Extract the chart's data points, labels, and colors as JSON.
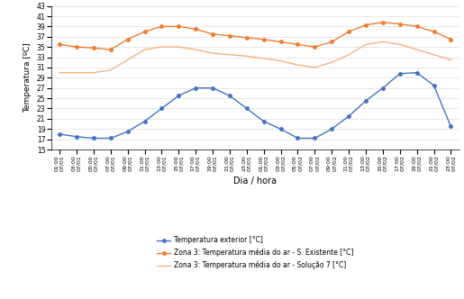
{
  "x_labels_time": [
    "01:00",
    "03:00",
    "05:00",
    "07:00",
    "09:00",
    "11:00",
    "13:00",
    "15:00",
    "17:00",
    "19:00",
    "21:00",
    "23:00",
    "01:00",
    "03:00",
    "05:00",
    "07:00",
    "09:00",
    "11:00",
    "13:00",
    "15:00",
    "17:00",
    "19:00",
    "21:00",
    "23:00"
  ],
  "x_labels_date": [
    "07/01",
    "07/01",
    "07/01",
    "07/01",
    "07/01",
    "07/01",
    "07/01",
    "07/01",
    "07/01",
    "07/01",
    "07/01",
    "07/01",
    "07/02",
    "07/02",
    "07/02",
    "07/02",
    "07/02",
    "07/02",
    "07/02",
    "07/02",
    "07/02",
    "07/02",
    "07/02",
    "07/02"
  ],
  "exterior": [
    18.0,
    17.5,
    17.2,
    17.2,
    18.5,
    20.5,
    23.0,
    25.5,
    27.0,
    27.0,
    25.5,
    23.0,
    20.5,
    19.0,
    17.2,
    17.2,
    19.0,
    21.5,
    24.5,
    27.0,
    29.8,
    30.0,
    27.5,
    19.5
  ],
  "existente": [
    35.5,
    35.0,
    34.8,
    34.5,
    36.5,
    38.0,
    39.0,
    39.0,
    38.5,
    37.5,
    37.2,
    36.8,
    36.5,
    36.0,
    35.5,
    35.0,
    36.0,
    38.0,
    39.3,
    39.8,
    39.5,
    39.0,
    38.0,
    36.5
  ],
  "solucao7": [
    30.0,
    30.0,
    30.0,
    30.5,
    32.5,
    34.5,
    35.0,
    35.0,
    34.5,
    33.8,
    33.5,
    33.2,
    32.8,
    32.3,
    31.5,
    31.0,
    32.0,
    33.5,
    35.5,
    36.0,
    35.5,
    34.5,
    33.5,
    32.5
  ],
  "color_exterior": "#4472C4",
  "color_existente": "#ED7D31",
  "color_solucao7": "#F4B183",
  "ylabel": "Temperatura [ºC]",
  "xlabel": "Dia / hora",
  "ylim_min": 15,
  "ylim_max": 43,
  "yticks": [
    15,
    17,
    19,
    21,
    23,
    25,
    27,
    29,
    31,
    33,
    35,
    37,
    39,
    41,
    43
  ],
  "legend_exterior": "Temperatura exterior [°C]",
  "legend_existente": "Zona 3: Temperatura média do ar - S. Existente [°C]",
  "legend_solucao7": "Zona 3: Temperatura média do ar - Solução 7 [°C]"
}
